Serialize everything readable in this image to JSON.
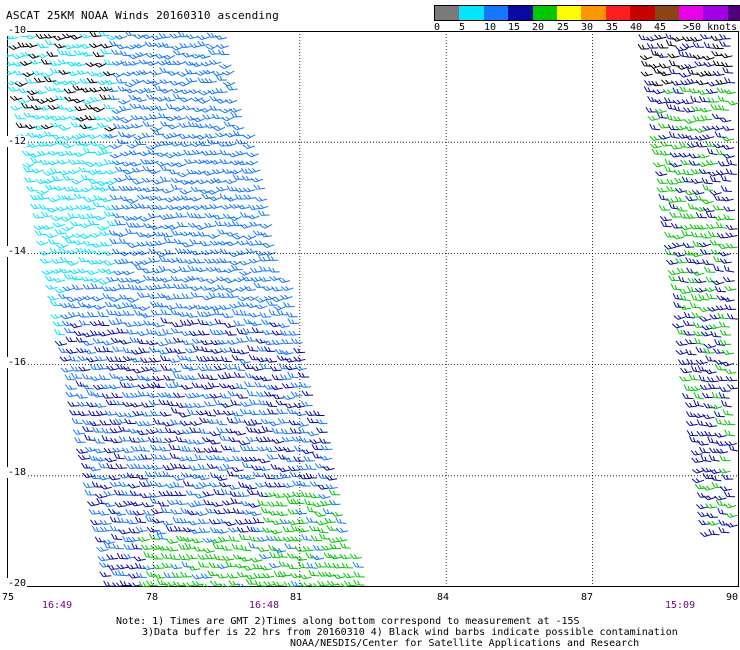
{
  "title": "ASCAT 25KM NOAA Winds 20160310 ascending",
  "legend": {
    "colors": [
      "#7a7a7a",
      "#00e6ff",
      "#1478ff",
      "#0a0aa0",
      "#00c800",
      "#ffff00",
      "#ff9600",
      "#ff1e1e",
      "#c80000",
      "#8b4513",
      "#e800e8",
      "#a000e6",
      "#500078"
    ],
    "tick_labels": [
      "0",
      "5",
      "10",
      "15",
      "20",
      "25",
      "30",
      "35",
      "40",
      "45",
      ">50 knots"
    ],
    "tick_values": [
      0,
      5,
      10,
      15,
      20,
      25,
      30,
      35,
      40,
      45,
      50
    ]
  },
  "map": {
    "lon_range": [
      75,
      90
    ],
    "lat_range": [
      -20,
      -10
    ],
    "x_ticks": [
      "75",
      "78",
      "81",
      "84",
      "87",
      "90"
    ],
    "y_ticks": [
      "-10",
      "-12",
      "-14",
      "-16",
      "-18",
      "-20"
    ],
    "grid": "dotted"
  },
  "times": [
    "16:49",
    "16:48",
    "15:09"
  ],
  "notes": {
    "line1": "Note: 1) Times are GMT 2)Times along bottom correspond to measurement at -15S",
    "line2": "3)Data buffer is 22 hrs from 20160310 4) Black wind barbs indicate possible contamination",
    "line3": "NOAA/NESDIS/Center for Satellite Applications and Research"
  }
}
